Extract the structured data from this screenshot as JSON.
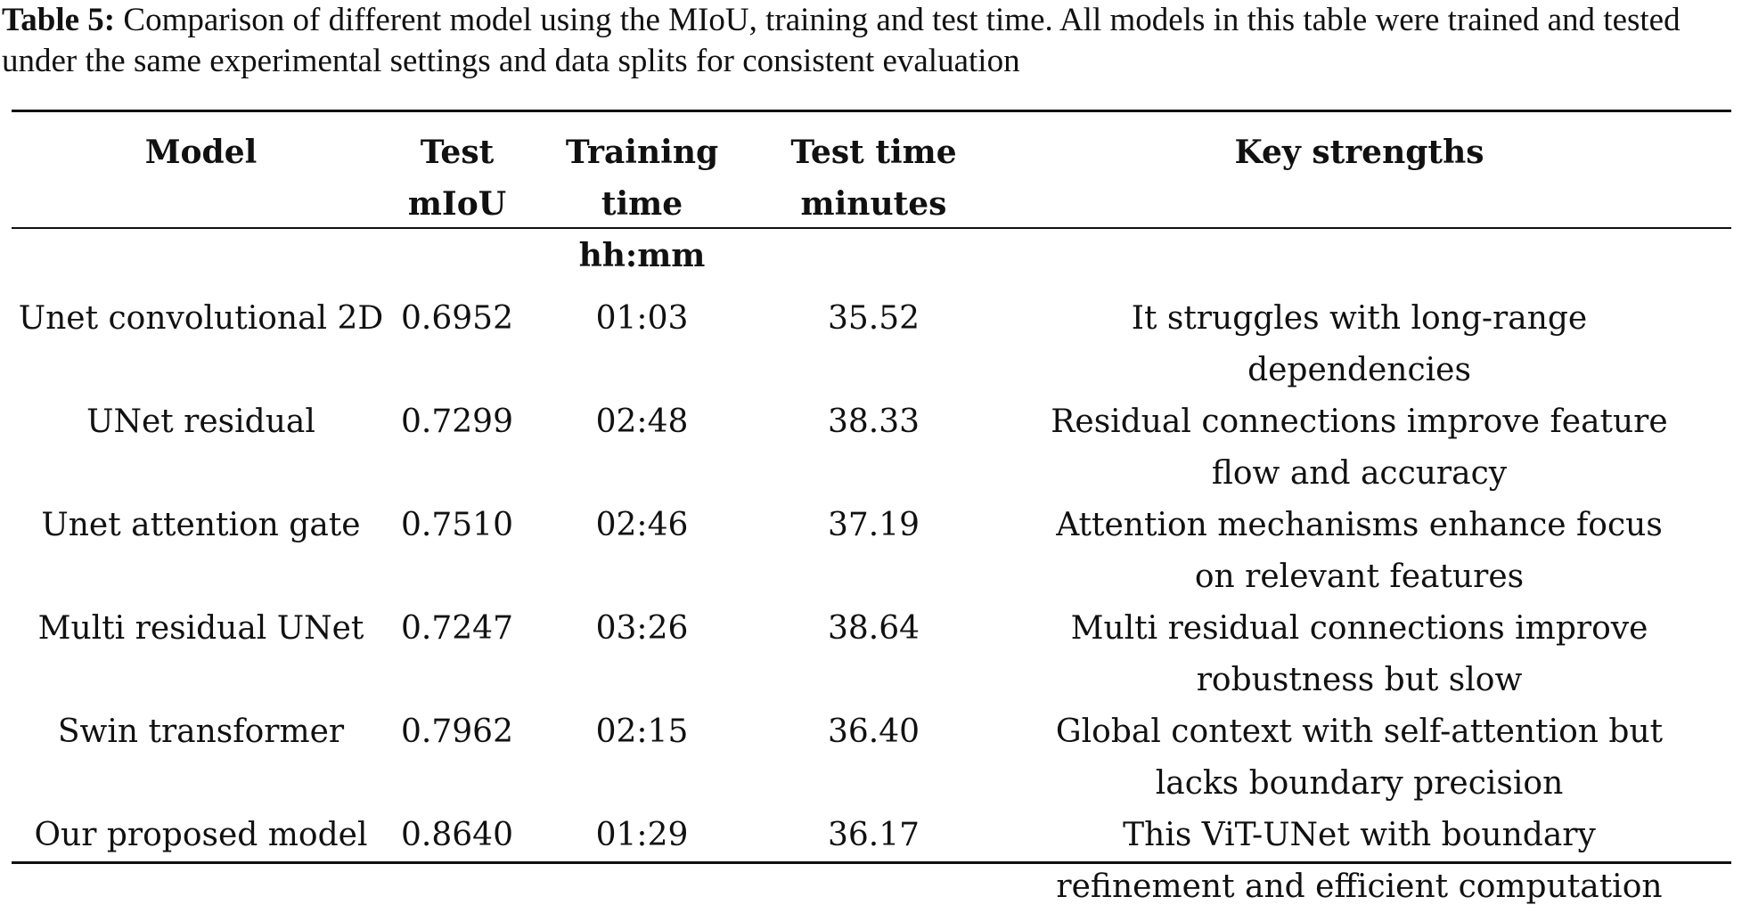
{
  "caption": {
    "label": "Table 5:",
    "text": "Comparison of different model using the MIoU, training and test time. All models in this table were trained and tested under the same experimental settings and data splits for consistent evaluation"
  },
  "table": {
    "headers": {
      "model": "Model",
      "miou_line1": "Test",
      "miou_line2": "mIoU",
      "train_line1": "Training time",
      "train_line2": "hh:mm",
      "test_line1": "Test time",
      "test_line2": "minutes",
      "strengths": "Key strengths"
    },
    "rows": [
      {
        "model": "Unet convolutional 2D",
        "miou": "0.6952",
        "training_time": "01:03",
        "test_time": "35.52",
        "strengths_line1": "It struggles with long-range",
        "strengths_line2": "dependencies"
      },
      {
        "model": "UNet residual",
        "miou": "0.7299",
        "training_time": "02:48",
        "test_time": "38.33",
        "strengths_line1": "Residual connections improve feature",
        "strengths_line2": "flow and accuracy"
      },
      {
        "model": "Unet attention gate",
        "miou": "0.7510",
        "training_time": "02:46",
        "test_time": "37.19",
        "strengths_line1": "Attention mechanisms enhance focus",
        "strengths_line2": "on relevant features"
      },
      {
        "model": "Multi residual UNet",
        "miou": "0.7247",
        "training_time": "03:26",
        "test_time": "38.64",
        "strengths_line1": "Multi residual connections improve",
        "strengths_line2": "robustness but slow"
      },
      {
        "model": "Swin transformer",
        "miou": "0.7962",
        "training_time": "02:15",
        "test_time": "36.40",
        "strengths_line1": "Global context with self-attention but",
        "strengths_line2": "lacks boundary precision"
      },
      {
        "model": "Our proposed model",
        "miou": "0.8640",
        "training_time": "01:29",
        "test_time": "36.17",
        "strengths_line1": "This ViT-UNet with boundary",
        "strengths_line2": "refinement and efficient computation"
      }
    ]
  }
}
